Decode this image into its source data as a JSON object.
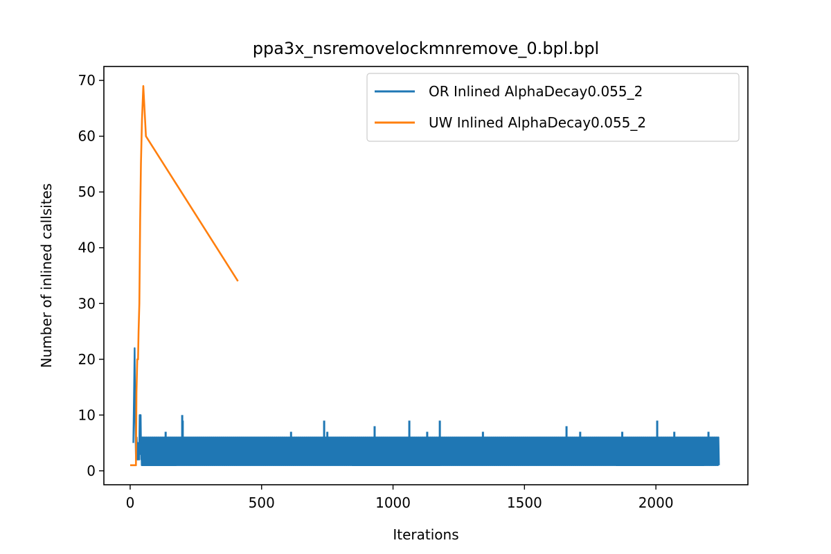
{
  "chart_data": {
    "type": "line",
    "title": "ppa3x_nsremovelockmnremove_0.bpl.bpl",
    "xlabel": "Iterations",
    "ylabel": "Number of inlined callsites",
    "xlim": [
      -100,
      2350
    ],
    "ylim": [
      -2.5,
      72.5
    ],
    "xticks": [
      0,
      500,
      1000,
      1500,
      2000
    ],
    "yticks": [
      0,
      10,
      20,
      30,
      40,
      50,
      60,
      70
    ],
    "grid": false,
    "legend_position": "top-right",
    "series": [
      {
        "name": "OR Inlined AlphaDecay0.055_2",
        "color": "#1f77b4",
        "band": {
          "x_start": 40,
          "x_end": 2240,
          "y_low": 1,
          "y_high": 6
        },
        "x": [
          12,
          17,
          19,
          22,
          25,
          28,
          30,
          34,
          36,
          38,
          40,
          42,
          44,
          46,
          48,
          50
        ],
        "values": [
          5,
          22,
          10,
          2,
          6,
          2,
          5,
          2,
          10,
          3,
          10,
          2,
          5,
          1,
          6,
          2
        ],
        "spikes": [
          {
            "x": 135,
            "y": 7
          },
          {
            "x": 198,
            "y": 10
          },
          {
            "x": 200,
            "y": 9
          },
          {
            "x": 612,
            "y": 7
          },
          {
            "x": 738,
            "y": 9
          },
          {
            "x": 750,
            "y": 7
          },
          {
            "x": 930,
            "y": 8
          },
          {
            "x": 1062,
            "y": 9
          },
          {
            "x": 1130,
            "y": 7
          },
          {
            "x": 1178,
            "y": 9
          },
          {
            "x": 1342,
            "y": 7
          },
          {
            "x": 1660,
            "y": 8
          },
          {
            "x": 1712,
            "y": 7
          },
          {
            "x": 1872,
            "y": 7
          },
          {
            "x": 2005,
            "y": 9
          },
          {
            "x": 2070,
            "y": 7
          },
          {
            "x": 2200,
            "y": 7
          }
        ]
      },
      {
        "name": "UW Inlined AlphaDecay0.055_2",
        "color": "#ff7f0e",
        "x": [
          0,
          22,
          24,
          27,
          30,
          32,
          35,
          38,
          41,
          45,
          50,
          60,
          410
        ],
        "values": [
          1,
          1,
          14,
          20,
          20,
          25,
          30,
          45,
          55,
          63,
          69,
          60,
          34
        ]
      }
    ]
  }
}
